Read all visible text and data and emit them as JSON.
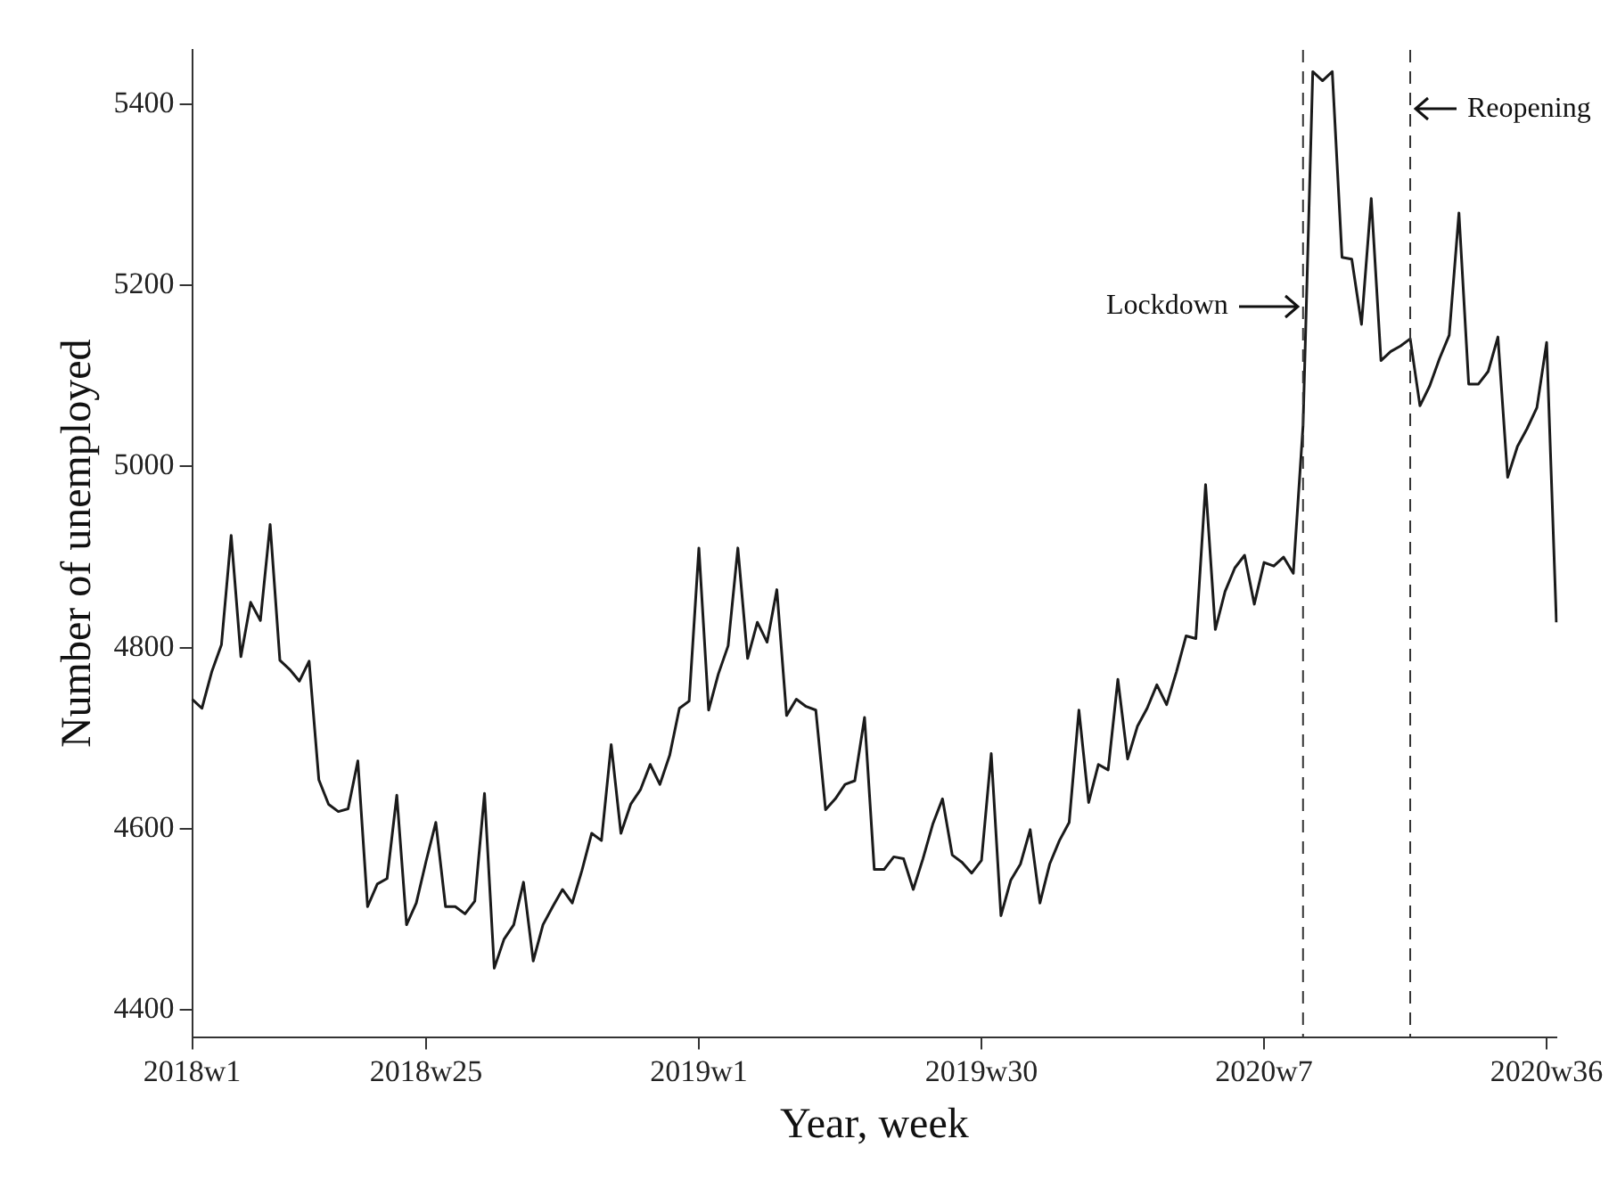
{
  "chart_data": {
    "type": "line",
    "xlabel": "Year, week",
    "ylabel": "Number of unemployed",
    "categories": [
      "2018w1",
      null,
      null,
      null,
      null,
      null,
      null,
      null,
      null,
      null,
      null,
      null,
      null,
      null,
      null,
      null,
      null,
      null,
      null,
      null,
      null,
      null,
      null,
      null,
      "2018w25",
      null,
      null,
      null,
      null,
      null,
      null,
      null,
      null,
      null,
      null,
      null,
      null,
      null,
      null,
      null,
      null,
      null,
      null,
      null,
      null,
      null,
      null,
      null,
      null,
      null,
      null,
      null,
      "2019w1",
      null,
      null,
      null,
      null,
      null,
      null,
      null,
      null,
      null,
      null,
      null,
      null,
      null,
      null,
      null,
      null,
      null,
      null,
      null,
      null,
      null,
      null,
      null,
      null,
      null,
      null,
      null,
      null,
      "2019w30",
      null,
      null,
      null,
      null,
      null,
      null,
      null,
      null,
      null,
      null,
      null,
      null,
      null,
      null,
      null,
      null,
      null,
      null,
      null,
      null,
      null,
      null,
      null,
      null,
      null,
      null,
      null,
      null,
      "2020w7",
      null,
      null,
      null,
      null,
      null,
      null,
      null,
      null,
      null,
      null,
      null,
      null,
      null,
      null,
      null,
      null,
      null,
      null,
      null,
      null,
      null,
      null,
      null,
      null,
      null,
      null,
      null,
      null,
      "2020w36",
      null
    ],
    "series": [
      {
        "color": "#1a1a1a",
        "values": [
          4743,
          4733,
          4773,
          4803,
          4924,
          4790,
          4850,
          4830,
          4936,
          4786,
          4776,
          4763,
          4785,
          4654,
          4627,
          4619,
          4622,
          4675,
          4514,
          4539,
          4545,
          4637,
          4494,
          4518,
          4564,
          4607,
          4514,
          4514,
          4506,
          4520,
          4639,
          4446,
          4478,
          4494,
          4541,
          4454,
          4494,
          4514,
          4533,
          4518,
          4554,
          4595,
          4587,
          4693,
          4595,
          4627,
          4643,
          4671,
          4649,
          4681,
          4733,
          4741,
          4910,
          4731,
          4771,
          4802,
          4910,
          4788,
          4828,
          4806,
          4864,
          4725,
          4743,
          4735,
          4731,
          4621,
          4633,
          4649,
          4653,
          4723,
          4555,
          4555,
          4569,
          4567,
          4533,
          4567,
          4605,
          4633,
          4571,
          4563,
          4551,
          4565,
          4683,
          4504,
          4543,
          4561,
          4599,
          4518,
          4561,
          4587,
          4607,
          4731,
          4629,
          4671,
          4665,
          4765,
          4677,
          4713,
          4733,
          4759,
          4737,
          4773,
          4813,
          4810,
          4980,
          4820,
          4862,
          4888,
          4902,
          4848,
          4894,
          4890,
          4900,
          4882,
          5045,
          5436,
          5426,
          5436,
          5231,
          5229,
          5157,
          5296,
          5117,
          5127,
          5133,
          5141,
          5067,
          5089,
          5119,
          5145,
          5280,
          5091,
          5091,
          5105,
          5143,
          4988,
          5022,
          5042,
          5065,
          5137,
          4828
        ]
      }
    ],
    "ylim": [
      4370,
      5460
    ],
    "yticks": [
      4400,
      4600,
      4800,
      5000,
      5200,
      5400
    ],
    "annotations": [
      "Lockdown",
      "Reopening"
    ],
    "grid": false,
    "legend": false,
    "marker": "none",
    "line_style": "solid"
  }
}
